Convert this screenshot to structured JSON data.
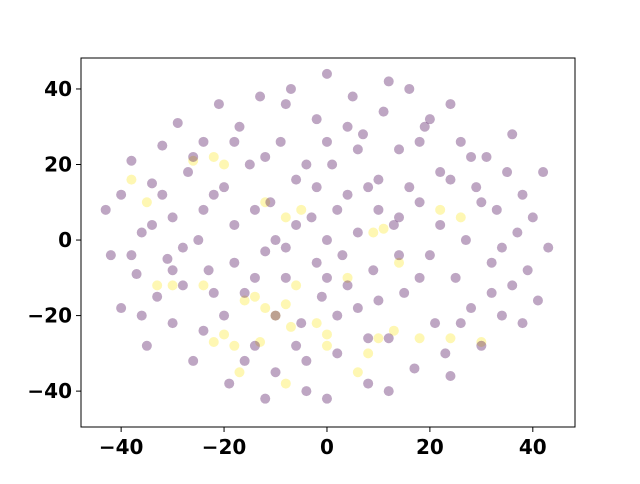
{
  "chart_data": {
    "type": "scatter",
    "xlim": [
      -47.8,
      48.2
    ],
    "ylim": [
      -49.5,
      48.2
    ],
    "xticks": [
      {
        "value": -40,
        "label": "−40"
      },
      {
        "value": -20,
        "label": "−20"
      },
      0,
      20,
      40
    ],
    "yticks": [
      {
        "value": -40,
        "label": "−40"
      },
      {
        "value": -20,
        "label": "−20"
      },
      0,
      20,
      40
    ],
    "alpha": 0.35,
    "series": [
      {
        "color": "#fde725",
        "x": [
          -38,
          -35,
          -33,
          -26,
          -22,
          -20,
          -22,
          -20,
          -18,
          -17,
          -14,
          -12,
          -10,
          -8,
          -7,
          -8,
          -8,
          -5,
          -6,
          -13,
          -16,
          0,
          -2,
          4,
          8,
          9,
          11,
          13,
          18,
          24,
          30,
          26,
          22,
          14,
          -12,
          6,
          -30,
          -24,
          0,
          10
        ],
        "y": [
          16,
          10,
          -12,
          21,
          22,
          20,
          -27,
          -25,
          -28,
          -35,
          -15,
          -18,
          -20,
          -17,
          -23,
          -38,
          6,
          8,
          -12,
          -27,
          -16,
          -25,
          -22,
          -10,
          -30,
          2,
          3,
          -24,
          -26,
          -26,
          -27,
          6,
          8,
          -6,
          10,
          -35,
          -12,
          -12,
          -28,
          -26
        ]
      },
      {
        "color": "#440154",
        "x": [
          -43,
          -42,
          -40,
          -40,
          -38,
          -37,
          -36,
          -35,
          -34,
          -33,
          -32,
          -31,
          -30,
          -30,
          -29,
          -28,
          -27,
          -26,
          -25,
          -24,
          -23,
          -22,
          -21,
          -20,
          -19,
          -18,
          -17,
          -16,
          -15,
          -14,
          -13,
          -12,
          -11,
          -10,
          -9,
          -8,
          -7,
          -6,
          -5,
          -4,
          -3,
          -2,
          -1,
          0,
          1,
          2,
          3,
          4,
          5,
          6,
          7,
          8,
          9,
          10,
          11,
          12,
          13,
          14,
          15,
          16,
          17,
          18,
          19,
          20,
          21,
          22,
          23,
          24,
          25,
          26,
          27,
          28,
          29,
          30,
          31,
          32,
          33,
          34,
          35,
          36,
          37,
          38,
          39,
          40,
          41,
          42,
          43,
          36,
          -36,
          -24,
          -12,
          0,
          12,
          24,
          -6,
          6,
          -18,
          18,
          -28,
          28,
          -2,
          2,
          -10,
          10,
          -20,
          20,
          -14,
          14,
          -26,
          26,
          -8,
          8,
          -32,
          32,
          -4,
          4,
          -16,
          16,
          -22,
          22,
          -30,
          30,
          -34,
          34,
          -12,
          12,
          -6,
          6,
          -2,
          2,
          -38,
          38,
          -18,
          18,
          -10,
          10,
          -24,
          24,
          -4,
          4,
          0,
          -8,
          8,
          -14,
          14,
          0,
          0
        ],
        "y": [
          8,
          -4,
          12,
          -18,
          21,
          -9,
          2,
          -28,
          15,
          -15,
          25,
          -5,
          6,
          -22,
          31,
          -12,
          18,
          -32,
          0,
          26,
          -8,
          12,
          36,
          -20,
          -38,
          4,
          30,
          -14,
          20,
          -28,
          38,
          -3,
          10,
          -35,
          26,
          -10,
          40,
          16,
          -22,
          -40,
          6,
          32,
          -15,
          44,
          20,
          -30,
          -4,
          12,
          38,
          -18,
          28,
          -38,
          -8,
          16,
          34,
          -26,
          4,
          24,
          -14,
          40,
          -34,
          10,
          30,
          -4,
          -22,
          18,
          -30,
          36,
          -10,
          26,
          0,
          -18,
          14,
          -28,
          22,
          -6,
          8,
          -20,
          18,
          -12,
          2,
          12,
          -8,
          6,
          -16,
          18,
          -2,
          28,
          -20,
          -24,
          22,
          -42,
          42,
          -36,
          -28,
          2,
          -6,
          -10,
          -2,
          22,
          -6,
          8,
          0,
          -16,
          14,
          32,
          8,
          -4,
          22,
          -22,
          36,
          -26,
          12,
          -14,
          20,
          -12,
          -32,
          14,
          -14,
          4,
          -8,
          10,
          4,
          -2,
          -42,
          -40,
          4,
          24,
          14,
          -20,
          -4,
          -22,
          26,
          26,
          -20,
          8,
          8,
          16,
          -32,
          30,
          0,
          -2,
          14,
          -10,
          6,
          -10,
          26
        ]
      }
    ]
  }
}
